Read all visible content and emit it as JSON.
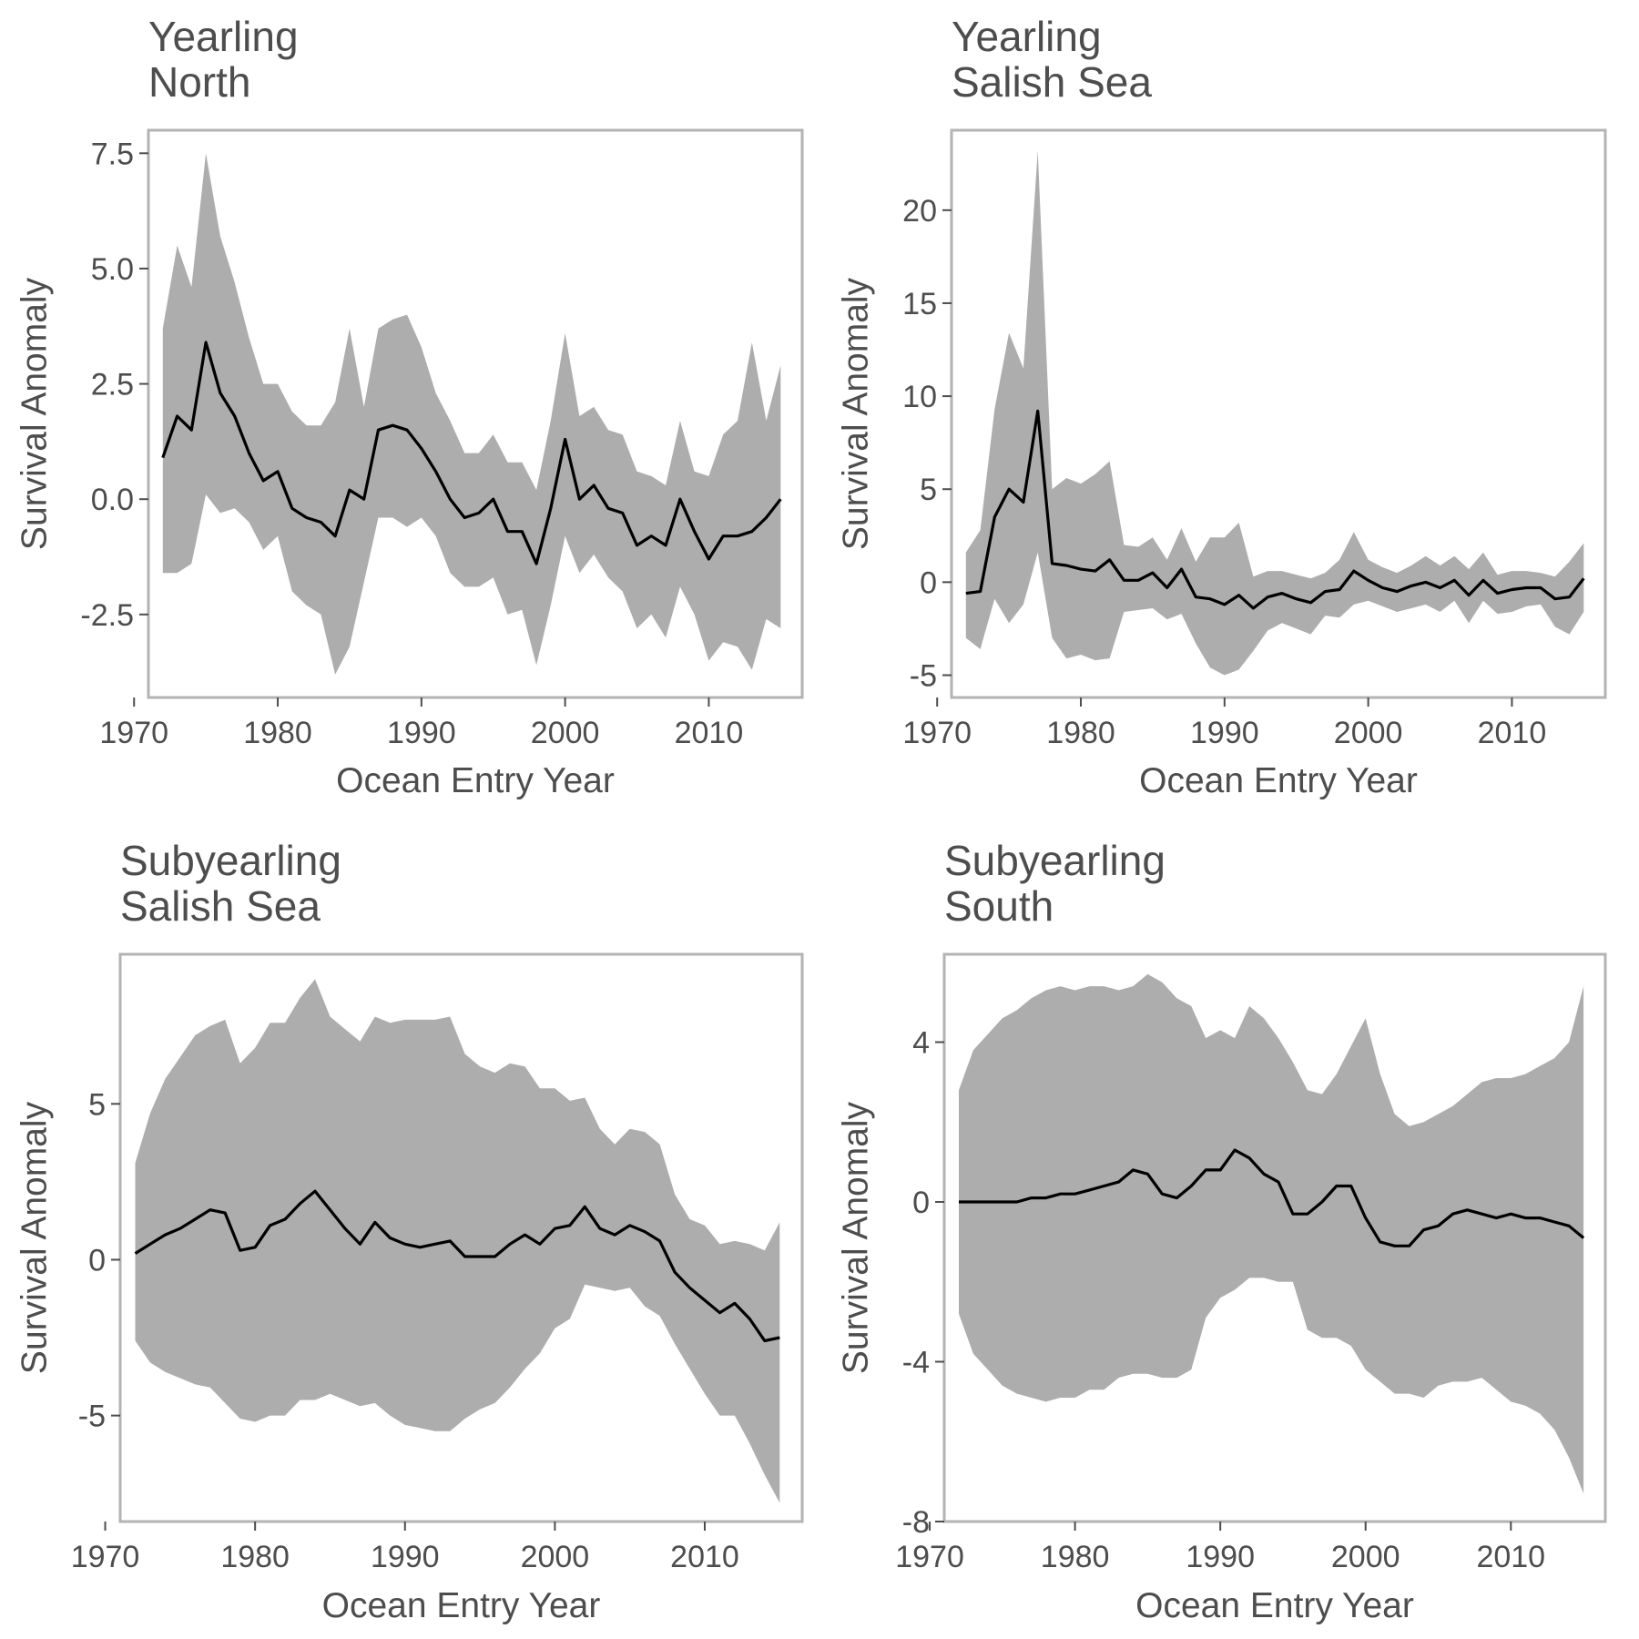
{
  "chart_data": [
    {
      "type": "line",
      "title": "Yearling\nNorth",
      "xlabel": "Ocean Entry Year",
      "ylabel": "Survival Anomaly",
      "xlim": [
        1971,
        2016.5
      ],
      "ylim": [
        -4.3,
        8.0
      ],
      "xticks": [
        1970,
        1980,
        1990,
        2000,
        2010
      ],
      "yticks": [
        -2.5,
        0.0,
        2.5,
        5.0,
        7.5
      ],
      "ytick_labels": [
        "-2.5",
        "0.0",
        "2.5",
        "5.0",
        "7.5"
      ],
      "band_color": "#adadad",
      "line_color": "#000000",
      "x": [
        1972,
        1973,
        1974,
        1975,
        1976,
        1977,
        1978,
        1979,
        1980,
        1981,
        1982,
        1983,
        1984,
        1985,
        1986,
        1987,
        1988,
        1989,
        1990,
        1991,
        1992,
        1993,
        1994,
        1995,
        1996,
        1997,
        1998,
        1999,
        2000,
        2001,
        2002,
        2003,
        2004,
        2005,
        2006,
        2007,
        2008,
        2009,
        2010,
        2011,
        2012,
        2013,
        2014,
        2015
      ],
      "y": [
        0.9,
        1.8,
        1.5,
        3.4,
        2.3,
        1.8,
        1.0,
        0.4,
        0.6,
        -0.2,
        -0.4,
        -0.5,
        -0.8,
        0.2,
        0.0,
        1.5,
        1.6,
        1.5,
        1.1,
        0.6,
        0.0,
        -0.4,
        -0.3,
        0.0,
        -0.7,
        -0.7,
        -1.4,
        -0.2,
        1.3,
        0.0,
        0.3,
        -0.2,
        -0.3,
        -1.0,
        -0.8,
        -1.0,
        0.0,
        -0.7,
        -1.3,
        -0.8,
        -0.8,
        -0.7,
        -0.4,
        0.0
      ],
      "lower": [
        -1.6,
        -1.6,
        -1.4,
        0.1,
        -0.3,
        -0.2,
        -0.5,
        -1.1,
        -0.8,
        -2.0,
        -2.3,
        -2.5,
        -3.8,
        -3.2,
        -1.8,
        -0.4,
        -0.4,
        -0.6,
        -0.4,
        -0.8,
        -1.6,
        -1.9,
        -1.9,
        -1.7,
        -2.5,
        -2.4,
        -3.6,
        -2.3,
        -0.8,
        -1.6,
        -1.2,
        -1.7,
        -2.0,
        -2.8,
        -2.5,
        -3.0,
        -1.9,
        -2.5,
        -3.5,
        -3.1,
        -3.2,
        -3.7,
        -2.6,
        -2.8
      ],
      "upper": [
        3.7,
        5.5,
        4.6,
        7.5,
        5.7,
        4.7,
        3.5,
        2.5,
        2.5,
        1.9,
        1.6,
        1.6,
        2.1,
        3.7,
        2.0,
        3.7,
        3.9,
        4.0,
        3.3,
        2.3,
        1.7,
        1.0,
        1.0,
        1.4,
        0.8,
        0.8,
        0.2,
        1.7,
        3.6,
        1.8,
        2.0,
        1.5,
        1.4,
        0.6,
        0.5,
        0.3,
        1.7,
        0.6,
        0.5,
        1.4,
        1.7,
        3.4,
        1.7,
        2.9
      ]
    },
    {
      "type": "line",
      "title": "Yearling\nSalish Sea",
      "xlabel": "Ocean Entry Year",
      "ylabel": "Survival Anomaly",
      "xlim": [
        1971,
        2016.5
      ],
      "ylim": [
        -6.2,
        24.3
      ],
      "xticks": [
        1970,
        1980,
        1990,
        2000,
        2010
      ],
      "yticks": [
        -5,
        0,
        5,
        10,
        15,
        20
      ],
      "ytick_labels": [
        "-5",
        "0",
        "5",
        "10",
        "15",
        "20"
      ],
      "band_color": "#adadad",
      "line_color": "#000000",
      "x": [
        1972,
        1973,
        1974,
        1975,
        1976,
        1977,
        1978,
        1979,
        1980,
        1981,
        1982,
        1983,
        1984,
        1985,
        1986,
        1987,
        1988,
        1989,
        1990,
        1991,
        1992,
        1993,
        1994,
        1995,
        1996,
        1997,
        1998,
        1999,
        2000,
        2001,
        2002,
        2003,
        2004,
        2005,
        2006,
        2007,
        2008,
        2009,
        2010,
        2011,
        2012,
        2013,
        2014,
        2015
      ],
      "y": [
        -0.6,
        -0.5,
        3.5,
        5.0,
        4.3,
        9.2,
        1.0,
        0.9,
        0.7,
        0.6,
        1.2,
        0.1,
        0.1,
        0.5,
        -0.3,
        0.7,
        -0.8,
        -0.9,
        -1.2,
        -0.7,
        -1.4,
        -0.8,
        -0.6,
        -0.9,
        -1.1,
        -0.5,
        -0.4,
        0.6,
        0.1,
        -0.3,
        -0.5,
        -0.2,
        0.0,
        -0.3,
        0.1,
        -0.7,
        0.1,
        -0.6,
        -0.4,
        -0.3,
        -0.3,
        -0.9,
        -0.8,
        0.2
      ],
      "lower": [
        -3.0,
        -3.6,
        -0.9,
        -2.2,
        -1.2,
        1.6,
        -3.0,
        -4.1,
        -3.9,
        -4.2,
        -4.1,
        -1.6,
        -1.5,
        -1.4,
        -2.0,
        -1.7,
        -3.3,
        -4.6,
        -5.0,
        -4.7,
        -3.7,
        -2.6,
        -2.2,
        -2.5,
        -2.8,
        -1.8,
        -1.9,
        -1.2,
        -1.0,
        -1.3,
        -1.6,
        -1.4,
        -1.2,
        -1.6,
        -1.0,
        -2.2,
        -1.0,
        -1.7,
        -1.6,
        -1.3,
        -1.2,
        -2.4,
        -2.8,
        -1.6
      ],
      "upper": [
        1.6,
        2.8,
        9.3,
        13.4,
        11.5,
        23.2,
        5.0,
        5.6,
        5.3,
        5.8,
        6.5,
        2.0,
        1.9,
        2.4,
        1.2,
        2.9,
        1.1,
        2.4,
        2.4,
        3.2,
        0.3,
        0.6,
        0.6,
        0.4,
        0.2,
        0.5,
        1.2,
        2.7,
        1.2,
        0.8,
        0.5,
        0.9,
        1.4,
        0.9,
        1.4,
        0.7,
        1.6,
        0.4,
        0.6,
        0.6,
        0.5,
        0.3,
        1.1,
        2.1
      ]
    },
    {
      "type": "line",
      "title": "Subyearling\nSalish Sea",
      "xlabel": "Ocean Entry Year",
      "ylabel": "Survival Anomaly",
      "xlim": [
        1971,
        2016.5
      ],
      "ylim": [
        -8.4,
        9.8
      ],
      "xticks": [
        1970,
        1980,
        1990,
        2000,
        2010
      ],
      "yticks": [
        -5,
        0,
        5
      ],
      "ytick_labels": [
        "-5",
        "0",
        "5"
      ],
      "band_color": "#adadad",
      "line_color": "#000000",
      "x": [
        1972,
        1973,
        1974,
        1975,
        1976,
        1977,
        1978,
        1979,
        1980,
        1981,
        1982,
        1983,
        1984,
        1985,
        1986,
        1987,
        1988,
        1989,
        1990,
        1991,
        1992,
        1993,
        1994,
        1995,
        1996,
        1997,
        1998,
        1999,
        2000,
        2001,
        2002,
        2003,
        2004,
        2005,
        2006,
        2007,
        2008,
        2009,
        2010,
        2011,
        2012,
        2013,
        2014,
        2015
      ],
      "y": [
        0.2,
        0.5,
        0.8,
        1.0,
        1.3,
        1.6,
        1.5,
        0.3,
        0.4,
        1.1,
        1.3,
        1.8,
        2.2,
        1.6,
        1.0,
        0.5,
        1.2,
        0.7,
        0.5,
        0.4,
        0.5,
        0.6,
        0.1,
        0.1,
        0.1,
        0.5,
        0.8,
        0.5,
        1.0,
        1.1,
        1.7,
        1.0,
        0.8,
        1.1,
        0.9,
        0.6,
        -0.4,
        -0.9,
        -1.3,
        -1.7,
        -1.4,
        -1.9,
        -2.6,
        -2.5
      ],
      "lower": [
        -2.6,
        -3.3,
        -3.6,
        -3.8,
        -4.0,
        -4.1,
        -4.6,
        -5.1,
        -5.2,
        -5.0,
        -5.0,
        -4.5,
        -4.5,
        -4.3,
        -4.5,
        -4.7,
        -4.6,
        -5.0,
        -5.3,
        -5.4,
        -5.5,
        -5.5,
        -5.1,
        -4.8,
        -4.6,
        -4.1,
        -3.5,
        -3.0,
        -2.2,
        -1.9,
        -0.8,
        -0.9,
        -1.0,
        -0.9,
        -1.5,
        -1.8,
        -2.7,
        -3.5,
        -4.3,
        -5.0,
        -5.0,
        -5.9,
        -6.9,
        -7.8
      ],
      "upper": [
        3.1,
        4.7,
        5.8,
        6.5,
        7.2,
        7.5,
        7.7,
        6.3,
        6.8,
        7.6,
        7.6,
        8.4,
        9.0,
        7.8,
        7.4,
        7.0,
        7.8,
        7.6,
        7.7,
        7.7,
        7.7,
        7.8,
        6.6,
        6.2,
        6.0,
        6.3,
        6.2,
        5.5,
        5.5,
        5.1,
        5.2,
        4.2,
        3.7,
        4.2,
        4.1,
        3.7,
        2.1,
        1.3,
        1.1,
        0.5,
        0.6,
        0.5,
        0.3,
        1.2
      ]
    },
    {
      "type": "line",
      "title": "Subyearling\nSouth",
      "xlabel": "Ocean Entry Year",
      "ylabel": "Survival Anomaly",
      "xlim": [
        1971,
        2016.5
      ],
      "ylim": [
        -8.0,
        6.2
      ],
      "xticks": [
        1970,
        1980,
        1990,
        2000,
        2010
      ],
      "yticks": [
        -8,
        -4,
        0,
        4
      ],
      "ytick_labels": [
        "-8",
        "-4",
        "0",
        "4"
      ],
      "band_color": "#adadad",
      "line_color": "#000000",
      "x": [
        1972,
        1973,
        1974,
        1975,
        1976,
        1977,
        1978,
        1979,
        1980,
        1981,
        1982,
        1983,
        1984,
        1985,
        1986,
        1987,
        1988,
        1989,
        1990,
        1991,
        1992,
        1993,
        1994,
        1995,
        1996,
        1997,
        1998,
        1999,
        2000,
        2001,
        2002,
        2003,
        2004,
        2005,
        2006,
        2007,
        2008,
        2009,
        2010,
        2011,
        2012,
        2013,
        2014,
        2015
      ],
      "y": [
        0.0,
        0.0,
        0.0,
        0.0,
        0.0,
        0.1,
        0.1,
        0.2,
        0.2,
        0.3,
        0.4,
        0.5,
        0.8,
        0.7,
        0.2,
        0.1,
        0.4,
        0.8,
        0.8,
        1.3,
        1.1,
        0.7,
        0.5,
        -0.3,
        -0.3,
        0.0,
        0.4,
        0.4,
        -0.4,
        -1.0,
        -1.1,
        -1.1,
        -0.7,
        -0.6,
        -0.3,
        -0.2,
        -0.3,
        -0.4,
        -0.3,
        -0.4,
        -0.4,
        -0.5,
        -0.6,
        -0.9
      ],
      "lower": [
        -2.8,
        -3.8,
        -4.2,
        -4.6,
        -4.8,
        -4.9,
        -5.0,
        -4.9,
        -4.9,
        -4.7,
        -4.7,
        -4.4,
        -4.3,
        -4.3,
        -4.4,
        -4.4,
        -4.2,
        -2.9,
        -2.4,
        -2.2,
        -1.9,
        -1.9,
        -2.0,
        -2.0,
        -3.2,
        -3.4,
        -3.4,
        -3.6,
        -4.2,
        -4.5,
        -4.8,
        -4.8,
        -4.9,
        -4.6,
        -4.5,
        -4.5,
        -4.4,
        -4.7,
        -5.0,
        -5.1,
        -5.3,
        -5.7,
        -6.4,
        -7.3
      ],
      "upper": [
        2.8,
        3.8,
        4.2,
        4.6,
        4.8,
        5.1,
        5.3,
        5.4,
        5.3,
        5.4,
        5.4,
        5.3,
        5.4,
        5.7,
        5.5,
        5.1,
        4.9,
        4.1,
        4.3,
        4.1,
        4.9,
        4.6,
        4.1,
        3.5,
        2.8,
        2.7,
        3.2,
        3.9,
        4.6,
        3.2,
        2.2,
        1.9,
        2.0,
        2.2,
        2.4,
        2.7,
        3.0,
        3.1,
        3.1,
        3.2,
        3.4,
        3.6,
        4.0,
        5.4
      ]
    }
  ]
}
